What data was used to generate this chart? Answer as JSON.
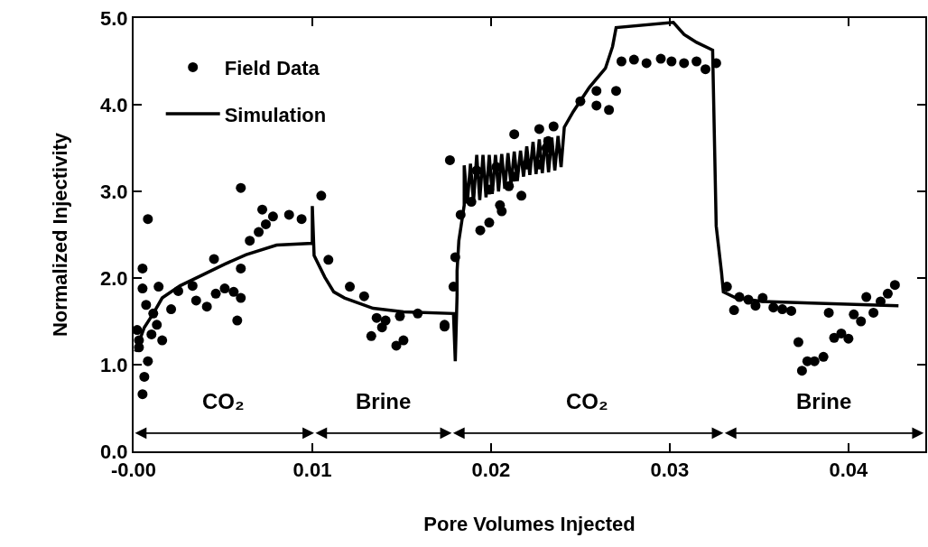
{
  "chart_data": {
    "type": "scatter",
    "xlabel": "Pore Volumes Injected",
    "ylabel": "Normalized Injectivity",
    "xlim": [
      0,
      0.0443
    ],
    "ylim": [
      0,
      5
    ],
    "xticks": [
      {
        "value": 0,
        "label": "-0.00"
      },
      0.01,
      0.02,
      0.03,
      0.04
    ],
    "yticks": [
      {
        "value": 0,
        "label": "0.0"
      },
      {
        "value": 1,
        "label": "1.0"
      },
      {
        "value": 2,
        "label": "2.0"
      },
      {
        "value": 3,
        "label": "3.0"
      },
      {
        "value": 4,
        "label": "4.0"
      },
      {
        "value": 5,
        "label": "5.0"
      }
    ],
    "legend": "top left",
    "series": [
      {
        "name": "Field Data",
        "color": "#000000",
        "marker": "circle",
        "x": [
          0.0005,
          0.0006,
          0.0008,
          0.0003,
          0.0003,
          0.0002,
          0.0005,
          0.0005,
          0.0014,
          0.0008,
          0.0007,
          0.0016,
          0.0011,
          0.0013,
          0.001,
          0.0021,
          0.0035,
          0.0041,
          0.0046,
          0.0051,
          0.0056,
          0.0033,
          0.0025,
          0.0058,
          0.006,
          0.0045,
          0.006,
          0.0065,
          0.007,
          0.0074,
          0.006,
          0.0072,
          0.0078,
          0.0087,
          0.0094,
          0.0105,
          0.0109,
          0.0121,
          0.0129,
          0.0136,
          0.0139,
          0.0133,
          0.0141,
          0.0147,
          0.0151,
          0.0149,
          0.0159,
          0.0174,
          0.0177,
          0.0174,
          0.0179,
          0.018,
          0.0183,
          0.0194,
          0.0199,
          0.0206,
          0.0205,
          0.0217,
          0.0189,
          0.0199,
          0.021,
          0.0192,
          0.0203,
          0.0213,
          0.022,
          0.0227,
          0.0231,
          0.0213,
          0.0227,
          0.0235,
          0.0232,
          0.025,
          0.0259,
          0.027,
          0.0259,
          0.0266,
          0.0273,
          0.028,
          0.0287,
          0.0295,
          0.0301,
          0.0308,
          0.0315,
          0.032,
          0.0326,
          0.0332,
          0.0336,
          0.0339,
          0.0344,
          0.0348,
          0.0352,
          0.0358,
          0.0363,
          0.0368,
          0.0389,
          0.0372,
          0.0374,
          0.0377,
          0.0381,
          0.0386,
          0.0392,
          0.0396,
          0.04,
          0.0403,
          0.0407,
          0.041,
          0.0414,
          0.0418,
          0.0422,
          0.0426
        ],
        "values": [
          0.66,
          0.86,
          1.04,
          1.28,
          1.2,
          1.4,
          2.11,
          1.88,
          1.9,
          2.68,
          1.69,
          1.28,
          1.59,
          1.46,
          1.35,
          1.64,
          1.74,
          1.67,
          1.82,
          1.88,
          1.84,
          1.91,
          1.85,
          1.51,
          1.77,
          2.22,
          2.11,
          2.43,
          2.53,
          2.62,
          3.04,
          2.79,
          2.71,
          2.73,
          2.68,
          2.95,
          2.21,
          1.9,
          1.79,
          1.54,
          1.43,
          1.33,
          1.51,
          1.22,
          1.28,
          1.56,
          1.59,
          1.46,
          3.36,
          1.44,
          1.9,
          2.24,
          2.73,
          2.55,
          2.64,
          2.77,
          2.84,
          2.95,
          2.88,
          3.02,
          3.06,
          3.24,
          3.28,
          3.17,
          3.31,
          3.31,
          3.5,
          3.66,
          3.72,
          3.75,
          3.58,
          4.04,
          4.16,
          4.16,
          3.99,
          3.94,
          4.5,
          4.52,
          4.48,
          4.53,
          4.5,
          4.48,
          4.5,
          4.41,
          4.48,
          1.9,
          1.63,
          1.78,
          1.75,
          1.68,
          1.77,
          1.66,
          1.64,
          1.62,
          1.6,
          1.26,
          0.93,
          1.04,
          1.04,
          1.09,
          1.31,
          1.36,
          1.3,
          1.58,
          1.5,
          1.78,
          1.6,
          1.73,
          1.82,
          1.92
        ]
      },
      {
        "name": "Simulation",
        "type": "line",
        "color": "#000000",
        "line_style": "solid",
        "x": [
          0.0001,
          0.0006,
          0.0011,
          0.0016,
          0.0026,
          0.0038,
          0.0051,
          0.0063,
          0.008,
          0.01,
          0.01,
          0.0101,
          0.0107,
          0.0112,
          0.0118,
          0.0134,
          0.0151,
          0.0179,
          0.018,
          0.0181,
          0.0181,
          0.0182,
          0.0185,
          0.0185,
          0.01867,
          0.01885,
          0.01902,
          0.0192,
          0.01937,
          0.01955,
          0.01972,
          0.0199,
          0.02007,
          0.02025,
          0.02042,
          0.0206,
          0.02077,
          0.02095,
          0.02112,
          0.0213,
          0.02147,
          0.02165,
          0.02182,
          0.022,
          0.02217,
          0.02235,
          0.02252,
          0.0227,
          0.02287,
          0.02305,
          0.02322,
          0.0234,
          0.02357,
          0.02375,
          0.02392,
          0.0241,
          0.0246,
          0.0255,
          0.0264,
          0.0268,
          0.027,
          0.0302,
          0.0308,
          0.0315,
          0.0324,
          0.0326,
          0.0329,
          0.033,
          0.0337,
          0.0352,
          0.0379,
          0.0428
        ],
        "values": [
          1.15,
          1.43,
          1.59,
          1.77,
          1.91,
          2.03,
          2.16,
          2.27,
          2.38,
          2.4,
          2.83,
          2.26,
          2.01,
          1.84,
          1.77,
          1.65,
          1.61,
          1.59,
          1.04,
          1.8,
          2.08,
          2.43,
          2.84,
          3.3,
          2.86,
          3.32,
          2.88,
          3.42,
          2.9,
          3.42,
          2.93,
          3.42,
          2.97,
          3.42,
          3.0,
          3.43,
          3.03,
          3.44,
          3.07,
          3.46,
          3.12,
          3.47,
          3.17,
          3.52,
          3.19,
          3.57,
          3.2,
          3.6,
          3.21,
          3.62,
          3.22,
          3.62,
          3.24,
          3.64,
          3.28,
          3.74,
          3.92,
          4.2,
          4.42,
          4.67,
          4.89,
          4.95,
          4.81,
          4.72,
          4.63,
          2.6,
          2.06,
          1.84,
          1.77,
          1.73,
          1.71,
          1.68
        ]
      }
    ],
    "annotations": [
      "CO₂",
      "Brine",
      "CO₂",
      "Brine"
    ]
  }
}
